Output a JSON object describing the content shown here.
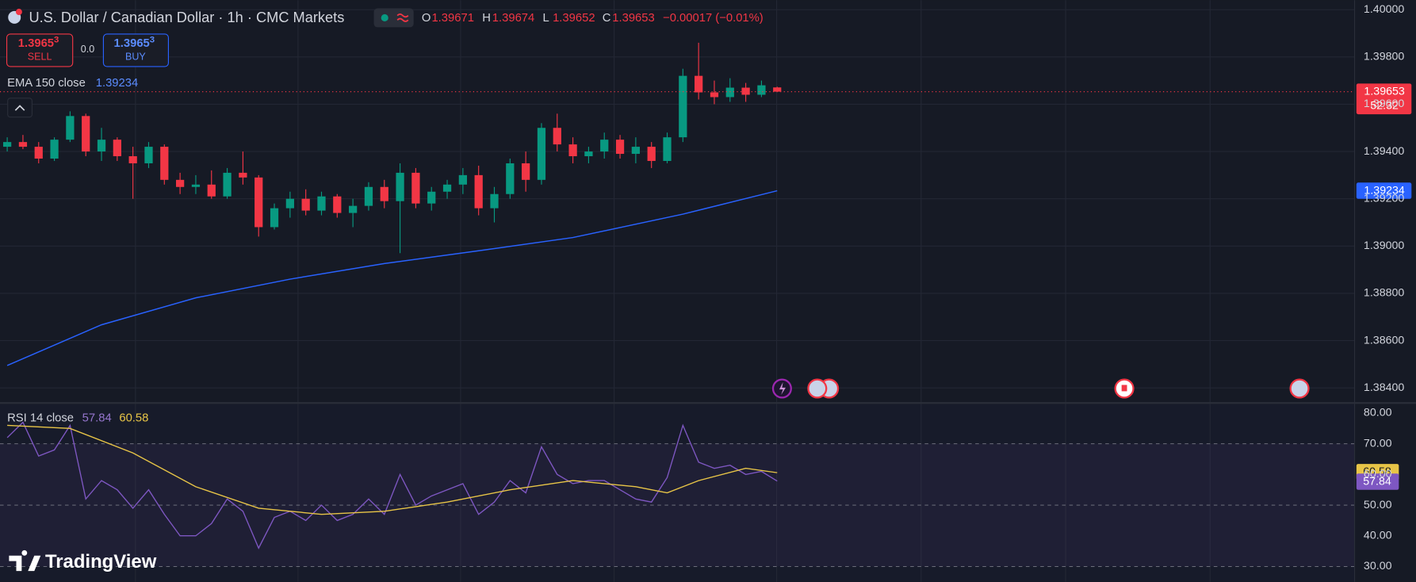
{
  "header": {
    "title": "U.S. Dollar / Canadian Dollar · 1h · CMC Markets",
    "open_label": "O",
    "open": "1.39671",
    "high_label": "H",
    "high": "1.39674",
    "low_label": "L",
    "low": "1.39652",
    "close_label": "C",
    "close": "1.39653",
    "change": "−0.00017 (−0.01%)"
  },
  "trade": {
    "sell_price": "1.3965",
    "sell_pip": "3",
    "sell_label": "SELL",
    "spread": "0.0",
    "buy_price": "1.3965",
    "buy_pip": "3",
    "buy_label": "BUY"
  },
  "brand": "TradingView",
  "chart_data": [
    {
      "type": "candlestick",
      "up_color": "#089981",
      "down_color": "#f23645",
      "open": [
        1.3942,
        1.3944,
        1.3942,
        1.3937,
        1.3945,
        1.3955,
        1.394,
        1.3945,
        1.3938,
        1.3935,
        1.3942,
        1.3928,
        1.3925,
        1.3926,
        1.3921,
        1.3931,
        1.3929,
        1.3908,
        1.3916,
        1.392,
        1.3915,
        1.3921,
        1.3914,
        1.3917,
        1.3925,
        1.3919,
        1.3931,
        1.3918,
        1.3923,
        1.3926,
        1.393,
        1.3916,
        1.3922,
        1.3935,
        1.3928,
        1.395,
        1.3943,
        1.3938,
        1.394,
        1.3945,
        1.3939,
        1.3942,
        1.3936,
        1.3946,
        1.3972,
        1.3965,
        1.3963,
        1.3967,
        1.3964,
        1.39671
      ],
      "high": [
        1.3946,
        1.3947,
        1.3944,
        1.3946,
        1.3957,
        1.3956,
        1.395,
        1.3946,
        1.3942,
        1.3944,
        1.3943,
        1.3931,
        1.393,
        1.3932,
        1.3933,
        1.394,
        1.393,
        1.3918,
        1.3923,
        1.3924,
        1.3923,
        1.3922,
        1.392,
        1.3927,
        1.3928,
        1.3935,
        1.3933,
        1.3925,
        1.3928,
        1.3933,
        1.3934,
        1.3925,
        1.3937,
        1.394,
        1.3952,
        1.3956,
        1.3946,
        1.3942,
        1.3948,
        1.3947,
        1.3946,
        1.3944,
        1.3948,
        1.3975,
        1.3986,
        1.397,
        1.3971,
        1.3969,
        1.397,
        1.39674
      ],
      "low": [
        1.394,
        1.3941,
        1.3935,
        1.3936,
        1.3944,
        1.3938,
        1.3936,
        1.3936,
        1.392,
        1.3933,
        1.3926,
        1.3922,
        1.3922,
        1.392,
        1.392,
        1.3926,
        1.3904,
        1.3907,
        1.3912,
        1.3913,
        1.3913,
        1.3912,
        1.3908,
        1.3915,
        1.3916,
        1.3897,
        1.3916,
        1.3915,
        1.392,
        1.3922,
        1.3913,
        1.391,
        1.392,
        1.3923,
        1.3926,
        1.394,
        1.3935,
        1.3935,
        1.3937,
        1.3937,
        1.3935,
        1.3933,
        1.3935,
        1.3944,
        1.3962,
        1.396,
        1.3961,
        1.3961,
        1.3963,
        1.39652
      ],
      "close": [
        1.3944,
        1.3942,
        1.3937,
        1.3945,
        1.3955,
        1.394,
        1.3945,
        1.3938,
        1.3935,
        1.3942,
        1.3928,
        1.3925,
        1.3926,
        1.3921,
        1.3931,
        1.3929,
        1.3908,
        1.3916,
        1.392,
        1.3915,
        1.3921,
        1.3914,
        1.3917,
        1.3925,
        1.3919,
        1.3931,
        1.3918,
        1.3923,
        1.3926,
        1.393,
        1.3916,
        1.3922,
        1.3935,
        1.3928,
        1.395,
        1.3943,
        1.3938,
        1.394,
        1.3945,
        1.3939,
        1.3942,
        1.3936,
        1.3946,
        1.3972,
        1.3965,
        1.3963,
        1.3967,
        1.3964,
        1.3968,
        1.39653
      ],
      "ylim": [
        1.3834,
        1.4004
      ],
      "yticks": [
        {
          "value": 1.4,
          "label": "1.40000"
        },
        {
          "value": 1.398,
          "label": "1.39800"
        },
        {
          "value": 1.396,
          "label": "1.39600"
        },
        {
          "value": 1.394,
          "label": "1.39400"
        },
        {
          "value": 1.392,
          "label": "1.39200"
        },
        {
          "value": 1.39,
          "label": "1.39000"
        },
        {
          "value": 1.388,
          "label": "1.38800"
        },
        {
          "value": 1.386,
          "label": "1.38600"
        },
        {
          "value": 1.384,
          "label": "1.38400"
        }
      ],
      "grid": true,
      "countdown": "52:32",
      "ema": {
        "name": "EMA 150 close",
        "value_label": "1.39234",
        "color": "#2962ff",
        "x": [
          0,
          6,
          12,
          18,
          24,
          30,
          36,
          43,
          49
        ],
        "values": [
          1.38495,
          1.38667,
          1.38781,
          1.3886,
          1.38926,
          1.3898,
          1.39036,
          1.39135,
          1.39234
        ]
      }
    },
    {
      "type": "line",
      "title": "RSI 14 close",
      "ylim": [
        25,
        83
      ],
      "yticks": [
        {
          "value": 80,
          "label": "80.00"
        },
        {
          "value": 70,
          "label": "70.00"
        },
        {
          "value": 60,
          "label": "60.00"
        },
        {
          "value": 50,
          "label": "50.00"
        },
        {
          "value": 40,
          "label": "40.00"
        },
        {
          "value": 30,
          "label": "30.00"
        }
      ],
      "dashed_levels": [
        70,
        50,
        30
      ],
      "series": [
        {
          "color": "#7e57c2",
          "value_label": "57.84",
          "values": [
            72,
            77,
            66,
            68,
            76,
            52,
            58,
            55,
            49,
            55,
            47,
            40,
            40,
            44,
            52,
            48,
            36,
            46,
            48,
            45,
            50,
            45,
            47,
            52,
            47,
            60,
            50,
            53,
            55,
            57,
            47,
            51,
            58,
            54,
            69,
            60,
            57,
            58,
            58,
            55,
            52,
            51,
            59,
            76,
            64,
            62,
            63,
            60,
            61,
            57.84
          ]
        },
        {
          "color": "#e8c547",
          "value_label": "60.58",
          "x": [
            0,
            4,
            8,
            12,
            16,
            20,
            24,
            28,
            32,
            36,
            40,
            42,
            44,
            47,
            49
          ],
          "values": [
            76,
            75,
            67,
            56,
            49,
            47,
            48,
            51,
            55,
            58,
            56,
            54,
            58,
            62,
            60.58
          ]
        }
      ]
    }
  ]
}
